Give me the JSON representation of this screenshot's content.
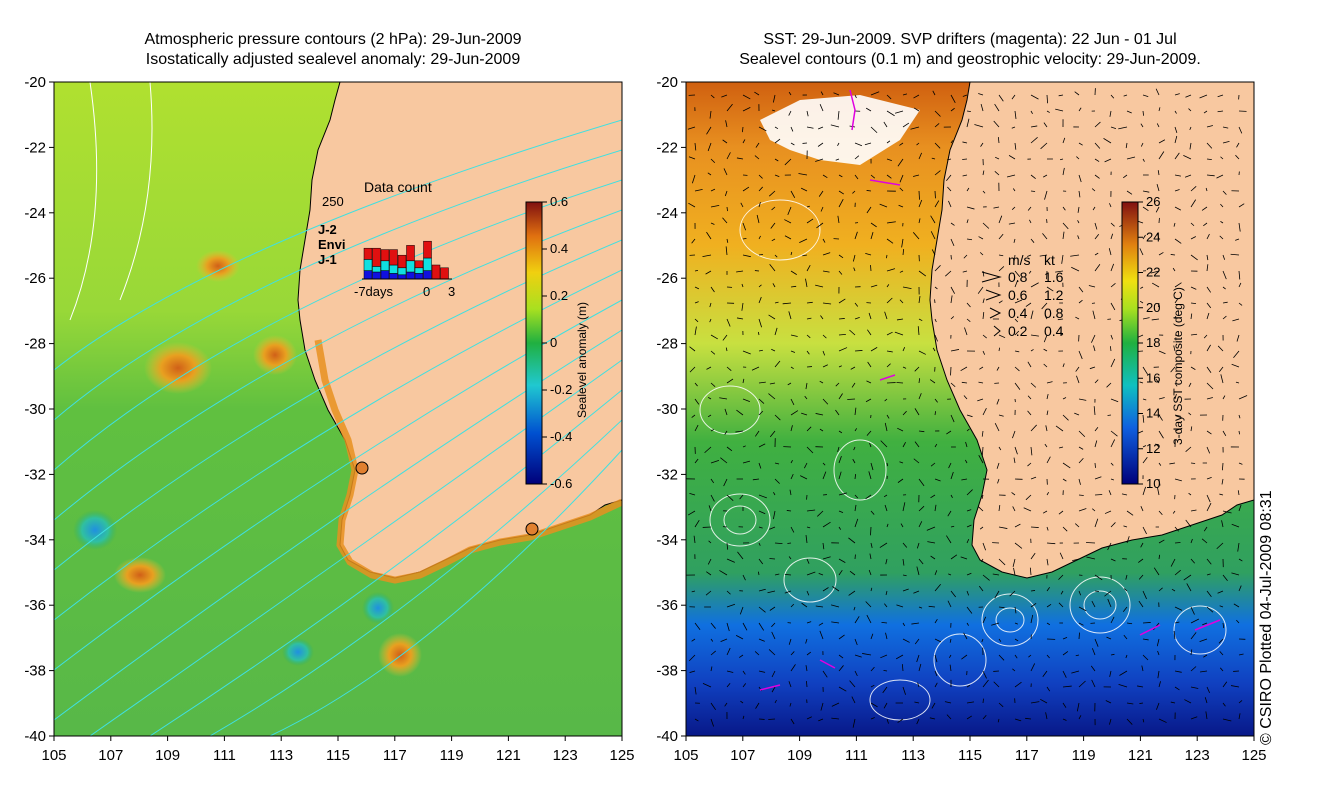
{
  "left_panel": {
    "title_line1": "Atmospheric pressure contours (2 hPa): 29-Jun-2009",
    "title_line2": "Isostatically adjusted sealevel anomaly: 29-Jun-2009",
    "x_ticks": [
      "105",
      "107",
      "109",
      "111",
      "113",
      "115",
      "117",
      "119",
      "121",
      "123",
      "125"
    ],
    "y_ticks": [
      "-20",
      "-22",
      "-24",
      "-26",
      "-28",
      "-30",
      "-32",
      "-34",
      "-36",
      "-38",
      "-40"
    ],
    "colorbar": {
      "label": "Sealevel anomaly (m)",
      "ticks": [
        "0.6",
        "0.4",
        "0.2",
        "0",
        "-0.2",
        "-0.4",
        "-0.6"
      ],
      "range": [
        -0.6,
        0.6
      ]
    },
    "data_count_inset": {
      "title": "Data count",
      "y_max_label": "250",
      "legend": [
        {
          "name": "J-2",
          "color": "#e01010"
        },
        {
          "name": "Envi",
          "color": "#10e0e0"
        },
        {
          "name": "J-1",
          "color": "#1010e0"
        }
      ],
      "x_labels": [
        "-7days",
        "0",
        "3"
      ]
    }
  },
  "right_panel": {
    "title_line1": "SST: 29-Jun-2009. SVP drifters (magenta): 22 Jun - 01 Jul",
    "title_line2": "Sealevel contours (0.1 m) and geostrophic velocity: 29-Jun-2009.",
    "x_ticks": [
      "105",
      "107",
      "109",
      "111",
      "113",
      "115",
      "117",
      "119",
      "121",
      "123",
      "125"
    ],
    "y_ticks": [
      "-20",
      "-22",
      "-24",
      "-26",
      "-28",
      "-30",
      "-32",
      "-34",
      "-36",
      "-38",
      "-40"
    ],
    "colorbar": {
      "label": "3-day SST composite (deg C)",
      "ticks": [
        "26",
        "24",
        "22",
        "20",
        "18",
        "16",
        "14",
        "12",
        "10"
      ],
      "range": [
        10,
        26
      ]
    },
    "velocity_legend": {
      "header_ms": "m/s",
      "header_kt": "kt",
      "rows": [
        {
          "ms": "0.8",
          "kt": "1.6"
        },
        {
          "ms": "0.6",
          "kt": "1.2"
        },
        {
          "ms": "0.4",
          "kt": "0.8"
        },
        {
          "ms": "0.2",
          "kt": "0.4"
        }
      ]
    }
  },
  "credit": "© CSIRO Plotted 04-Jul-2009 08:31",
  "colors": {
    "land": "#f8c8a0",
    "contour": "#40e0e0",
    "drifter": "#e000e0"
  }
}
